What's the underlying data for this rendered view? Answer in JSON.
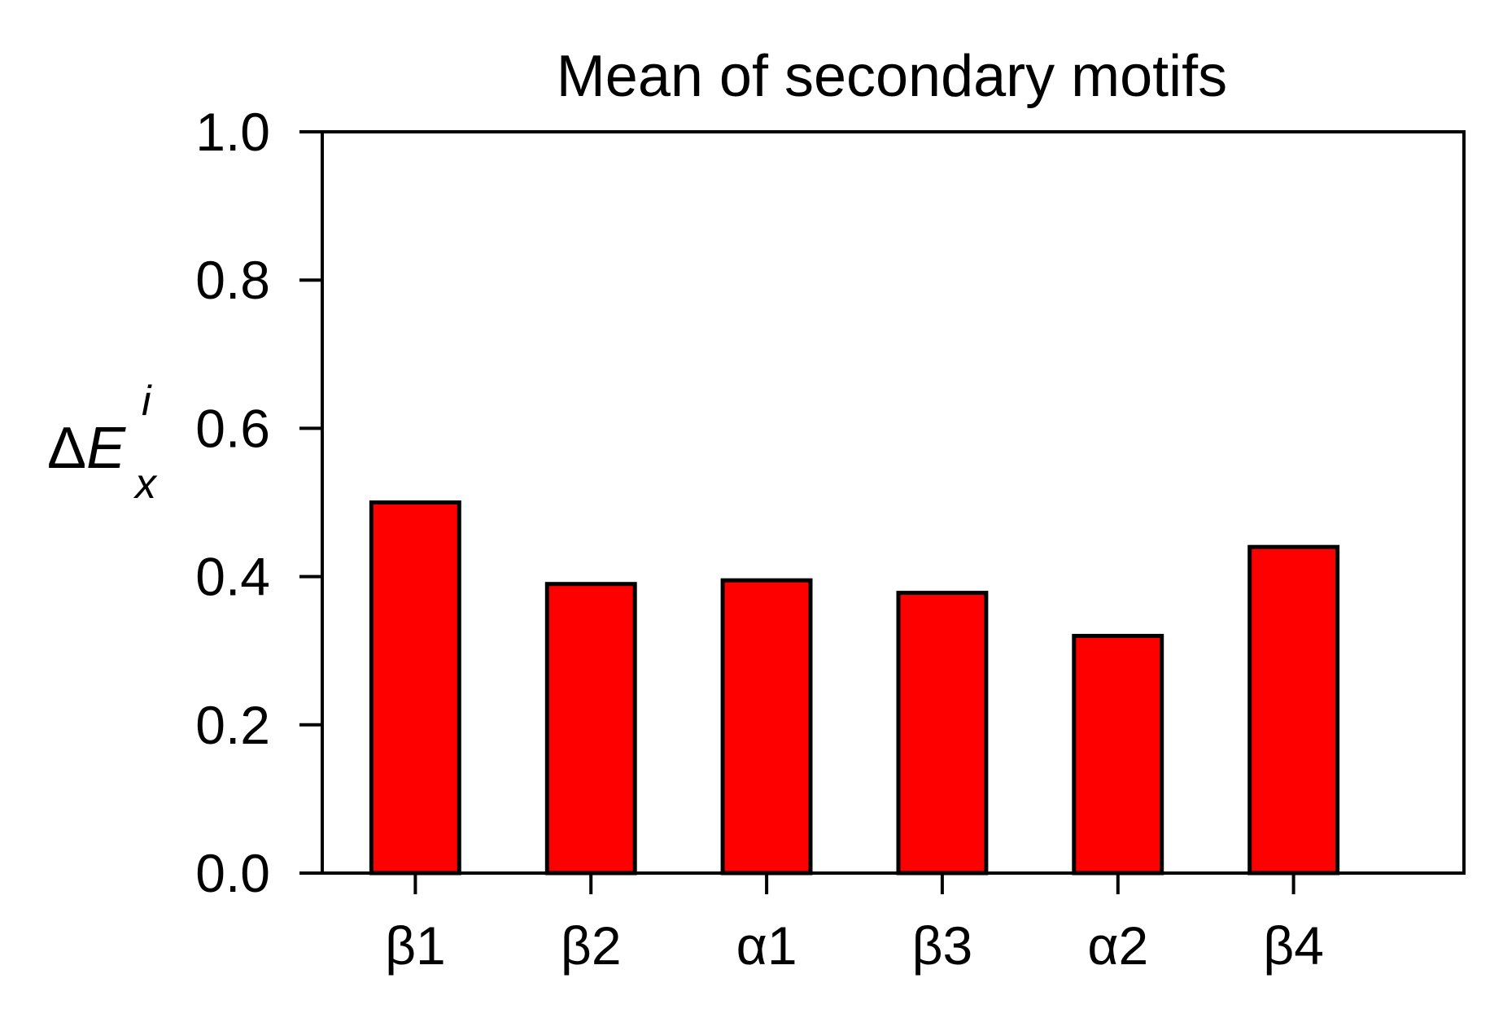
{
  "chart_data": {
    "type": "bar",
    "title": "Mean of secondary motifs",
    "ylabel": {
      "prefix": "Δ",
      "main": "E",
      "superscript": "i",
      "subscript": "x"
    },
    "xlabel": "",
    "categories": [
      "β1",
      "β2",
      "α1",
      "β3",
      "α2",
      "β4"
    ],
    "values": [
      0.5,
      0.39,
      0.395,
      0.378,
      0.32,
      0.44
    ],
    "ylim": [
      0.0,
      1.0
    ],
    "yticks": [
      "0.0",
      "0.2",
      "0.4",
      "0.6",
      "0.8",
      "1.0"
    ],
    "grid": false,
    "legend": "none",
    "colors": {
      "bar_fill": "#ff0000",
      "bar_edge": "#000000",
      "axes": "#000000"
    }
  }
}
